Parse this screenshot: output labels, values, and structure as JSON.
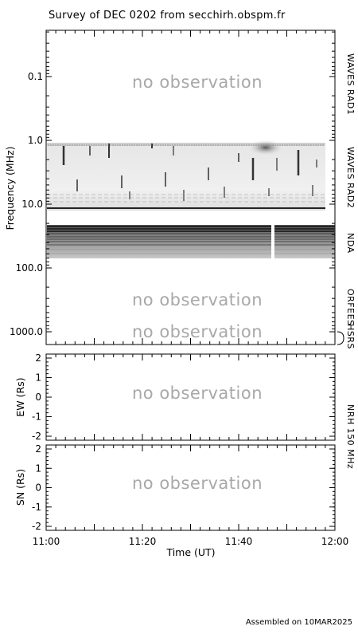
{
  "title": "Survey of  DEC 0202 from secchirh.obspm.fr",
  "footer": "Assembled on 10MAR2025",
  "no_observation_text": "no observation",
  "chart_data": [
    {
      "type": "heatmap",
      "panel": "dynamic-spectrum",
      "ylabel": "Frequency (MHz)",
      "y_scale": "log",
      "y_inverted": true,
      "ylim": [
        0.02,
        1500
      ],
      "y_ticks": [
        "0.1",
        "1.0",
        "10.0",
        "100.0",
        "1000.0"
      ],
      "y_tick_values": [
        0.1,
        1.0,
        10.0,
        100.0,
        1000.0
      ],
      "xlim": [
        "11:00",
        "12:00"
      ],
      "instruments": [
        {
          "name": "WAVES RAD1",
          "freq_range_mhz": [
            0.02,
            1.0
          ],
          "observed": false
        },
        {
          "name": "WAVES RAD2",
          "freq_range_mhz": [
            1.0,
            14.0
          ],
          "observed": true,
          "time_range": [
            "11:00",
            "11:58"
          ]
        },
        {
          "name": "NDA",
          "freq_range_mhz": [
            20.0,
            80.0
          ],
          "observed": true,
          "time_range": [
            "11:00",
            "12:00"
          ],
          "gap": [
            "11:47",
            "11:48"
          ]
        },
        {
          "name": "ORFEES",
          "freq_range_mhz": [
            140.0,
            1000.0
          ],
          "observed": false
        },
        {
          "name": "HSRS",
          "freq_range_mhz": [
            1000.0,
            1500.0
          ],
          "observed": false
        }
      ]
    },
    {
      "type": "line",
      "panel": "nrh-ew",
      "ylabel": "EW (Rs)",
      "ylim": [
        -2,
        2
      ],
      "y_ticks": [
        "-2",
        "-1",
        "0",
        "1",
        "2"
      ],
      "observed": false
    },
    {
      "type": "line",
      "panel": "nrh-sn",
      "ylabel": "SN (Rs)",
      "ylim": [
        -2,
        2
      ],
      "y_ticks": [
        "-2",
        "-1",
        "0",
        "1",
        "2"
      ],
      "observed": false,
      "xlabel": "Time (UT)",
      "x_ticks": [
        "11:00",
        "11:20",
        "11:40",
        "12:00"
      ]
    }
  ],
  "nrh_label": "NRH 150 MHz"
}
